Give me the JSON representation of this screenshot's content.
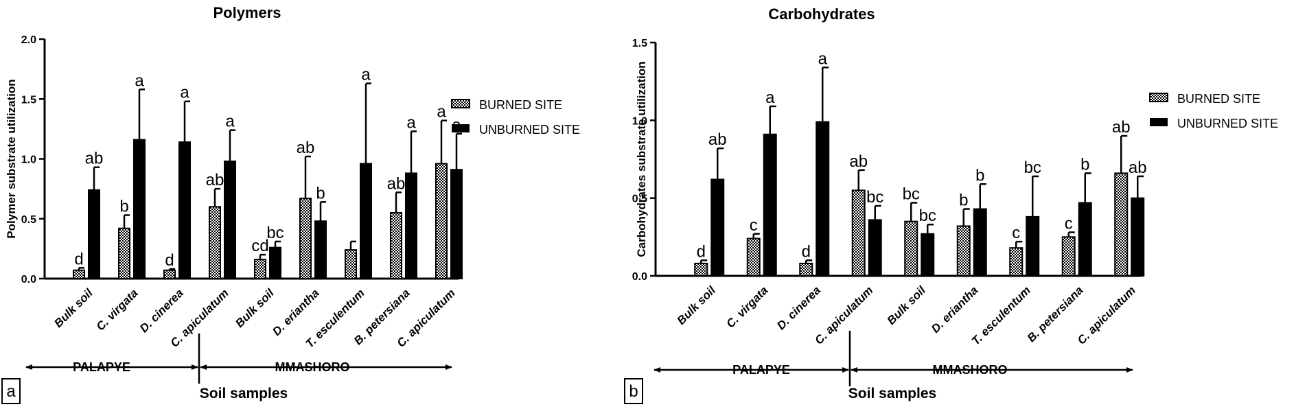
{
  "legend": {
    "burned": "BURNED SITE",
    "unburned": "UNBURNED SITE"
  },
  "colors": {
    "unburned": "#000000",
    "burned_pattern": "checkered black/white"
  },
  "site_labels": {
    "palapye": "PALAPYE",
    "mmashoro": "MMASHORO"
  },
  "x_title": "Soil samples",
  "chart_data": [
    {
      "type": "bar",
      "panel_label": "a",
      "title": "Polymers",
      "ylabel": "Polymer substrate utilization",
      "xlabel": "Soil samples",
      "ylim": [
        0,
        2.0
      ],
      "yticks": [
        "0.0",
        "0.5",
        "1.0",
        "1.5",
        "2.0"
      ],
      "categories": [
        "Bulk soil",
        "C. virgata",
        "D. cinerea",
        "C. apiculatum",
        "Bulk soil",
        "D. eriantha",
        "T. esculentum",
        "B. petersiana",
        "C. apiculatum"
      ],
      "groups": [
        {
          "name": "PALAPYE",
          "count": 4
        },
        {
          "name": "MMASHORO",
          "count": 5
        }
      ],
      "series": [
        {
          "name": "BURNED SITE",
          "values": [
            0.07,
            0.42,
            0.07,
            0.6,
            0.16,
            0.67,
            0.24,
            0.55,
            0.96
          ],
          "errors": [
            0.02,
            0.11,
            0.01,
            0.15,
            0.04,
            0.35,
            0.07,
            0.17,
            0.36
          ],
          "letters": [
            "d",
            "b",
            "d",
            "ab",
            "cd",
            "ab",
            "",
            "ab",
            "a"
          ]
        },
        {
          "name": "UNBURNED SITE",
          "values": [
            0.74,
            1.16,
            1.14,
            0.98,
            0.26,
            0.48,
            0.96,
            0.88,
            0.91
          ],
          "errors": [
            0.19,
            0.42,
            0.34,
            0.26,
            0.05,
            0.16,
            0.67,
            0.35,
            0.3
          ],
          "letters": [
            "ab",
            "a",
            "a",
            "a",
            "bc",
            "b",
            "a",
            "a",
            "a"
          ]
        }
      ]
    },
    {
      "type": "bar",
      "panel_label": "b",
      "title": "Carbohydrates",
      "ylabel": "Carbohydrates substrate utilization",
      "xlabel": "Soil samples",
      "ylim": [
        0,
        1.5
      ],
      "yticks": [
        "0.0",
        "0.5",
        "1.0",
        "1.5"
      ],
      "categories": [
        "Bulk soil",
        "C. virgata",
        "D. cinerea",
        "C. apiculatum",
        "Bulk soil",
        "D. eriantha",
        "T. esculentum",
        "B. petersiana",
        "C. apiculatum"
      ],
      "groups": [
        {
          "name": "PALAPYE",
          "count": 4
        },
        {
          "name": "MMASHORO",
          "count": 5
        }
      ],
      "series": [
        {
          "name": "BURNED SITE",
          "values": [
            0.08,
            0.24,
            0.08,
            0.55,
            0.35,
            0.32,
            0.18,
            0.25,
            0.66
          ],
          "errors": [
            0.02,
            0.03,
            0.02,
            0.13,
            0.12,
            0.11,
            0.04,
            0.03,
            0.24
          ],
          "letters": [
            "d",
            "c",
            "d",
            "ab",
            "bc",
            "b",
            "c",
            "c",
            "ab"
          ]
        },
        {
          "name": "UNBURNED SITE",
          "values": [
            0.62,
            0.91,
            0.99,
            0.36,
            0.27,
            0.43,
            0.38,
            0.47,
            0.5
          ],
          "errors": [
            0.2,
            0.18,
            0.35,
            0.09,
            0.06,
            0.16,
            0.26,
            0.19,
            0.14
          ],
          "letters": [
            "ab",
            "a",
            "a",
            "bc",
            "bc",
            "b",
            "bc",
            "b",
            "ab"
          ]
        }
      ]
    }
  ]
}
